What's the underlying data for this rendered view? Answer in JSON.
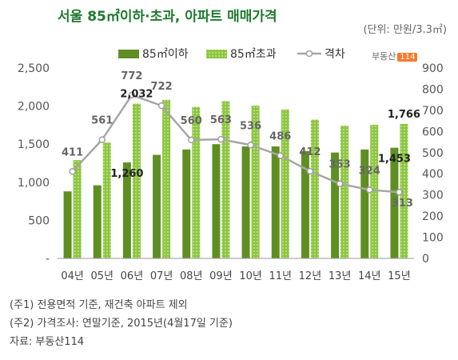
{
  "header": {
    "title": "서울 85㎡이하·초과, 아파트 매매가격",
    "unit": "(단위: 만원/3.3㎡)"
  },
  "logo": {
    "text": "부동산",
    "badge": "114"
  },
  "colors": {
    "bar_small": "#5f8f23",
    "bar_large": "#8cc63f",
    "bar_large_dot": "#c9e39a",
    "gap_line": "#a6a6a6",
    "gap_marker_fill": "#ffffff",
    "gap_marker_stroke": "#a0a0a0"
  },
  "chart_data": {
    "type": "bar",
    "categories": [
      "04년",
      "05년",
      "06년",
      "07년",
      "08년",
      "09년",
      "10년",
      "11년",
      "12년",
      "13년",
      "14년",
      "15년"
    ],
    "series": [
      {
        "name": "85㎡이하",
        "values": [
          880,
          960,
          1260,
          1360,
          1430,
          1500,
          1470,
          1470,
          1410,
          1390,
          1430,
          1453
        ]
      },
      {
        "name": "85㎡초과",
        "values": [
          1291,
          1521,
          2032,
          2082,
          1990,
          2063,
          2006,
          1956,
          1822,
          1743,
          1754,
          1766
        ]
      },
      {
        "name": "격차",
        "axis": "right",
        "values": [
          411,
          561,
          772,
          722,
          560,
          563,
          536,
          486,
          412,
          353,
          324,
          313
        ]
      }
    ],
    "y_left": {
      "min": 0,
      "max": 2500,
      "ticks": [
        "-",
        "500",
        "1,000",
        "1,500",
        "2,000",
        "2,500"
      ],
      "tick_values": [
        0,
        500,
        1000,
        1500,
        2000,
        2500
      ]
    },
    "y_right": {
      "min": 0,
      "max": 900,
      "ticks": [
        "0",
        "100",
        "200",
        "300",
        "400",
        "500",
        "600",
        "700",
        "800",
        "900"
      ],
      "tick_values": [
        0,
        100,
        200,
        300,
        400,
        500,
        600,
        700,
        800,
        900
      ]
    },
    "labels": {
      "small_labeled": {
        "2": "1,260",
        "11": "1,453"
      },
      "large_labeled": {
        "2": "2,032",
        "11": "1,766"
      },
      "gap_labels": [
        "411",
        "561",
        "772",
        "722",
        "560",
        "563",
        "536",
        "486",
        "412",
        "353",
        "324",
        "313"
      ]
    },
    "legend": {
      "position": "top",
      "items": [
        "85㎡이하",
        "85㎡초과",
        "격차"
      ]
    },
    "grid": false
  },
  "notes": [
    "(주1) 전용면적 기준, 재건축 아파트 제외",
    "(주2) 가격조사: 연말기준, 2015년(4월17일 기준)",
    "자료: 부동산114"
  ]
}
